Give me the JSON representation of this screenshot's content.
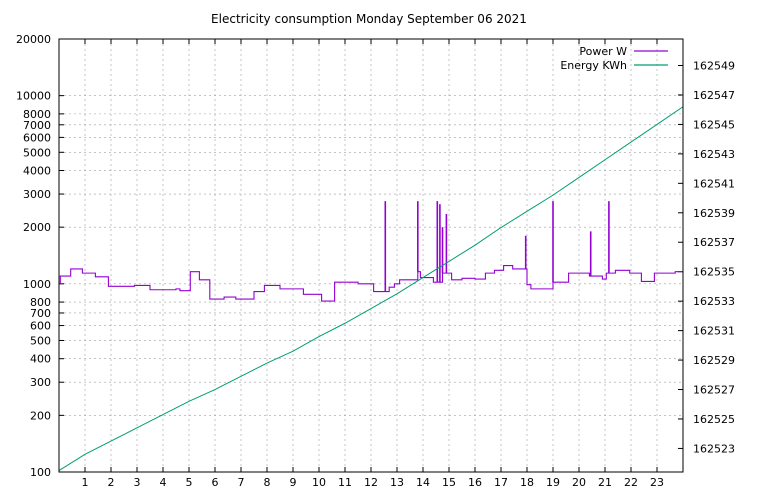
{
  "chart_data": {
    "type": "line",
    "title": "Electricity consumption Monday September 06 2021",
    "xlabel": "",
    "ylabel": "",
    "y2label": "",
    "grid": true,
    "legend_position": "top-right",
    "x_range": [
      0,
      24
    ],
    "x_ticks": [
      "1",
      "2",
      "3",
      "4",
      "5",
      "6",
      "7",
      "8",
      "9",
      "10",
      "11",
      "12",
      "13",
      "14",
      "15",
      "16",
      "17",
      "18",
      "19",
      "20",
      "21",
      "22",
      "23"
    ],
    "y_scale": "log",
    "y_range": [
      100,
      20000
    ],
    "y_ticks": [
      "100",
      "200",
      "300",
      "400",
      "500",
      "600",
      "700",
      "800",
      "1000",
      "2000",
      "3000",
      "4000",
      "5000",
      "6000",
      "7000",
      "8000",
      "10000",
      "20000"
    ],
    "y2_range": [
      162521.4,
      162550.8
    ],
    "y2_ticks": [
      "162523",
      "162525",
      "162527",
      "162529",
      "162531",
      "162533",
      "162535",
      "162537",
      "162539",
      "162541",
      "162543",
      "162545",
      "162547",
      "162549"
    ],
    "series": [
      {
        "name": "Power W",
        "axis": "y",
        "color": "#9400d3",
        "step": true,
        "x": [
          0,
          0.05,
          0.45,
          0.9,
          1.4,
          1.9,
          2.9,
          3.5,
          4.5,
          4.65,
          5.05,
          5.4,
          5.8,
          6.35,
          6.8,
          7.5,
          7.9,
          8.5,
          9.4,
          10.1,
          10.6,
          11.5,
          12.1,
          12.7,
          12.9,
          13.1,
          13.8,
          13.9,
          14.4,
          14.75,
          15.1,
          15.5,
          16.0,
          16.4,
          16.75,
          17.1,
          17.45,
          18.0,
          18.15,
          19.0,
          19.6,
          20.4,
          20.9,
          21.05,
          21.4,
          21.95,
          22.4,
          22.9,
          23.7
        ],
        "y": [
          1000,
          1100,
          1200,
          1140,
          1090,
          970,
          980,
          930,
          940,
          920,
          1160,
          1050,
          830,
          850,
          830,
          910,
          980,
          940,
          880,
          810,
          1020,
          1000,
          910,
          960,
          1000,
          1050,
          1160,
          1080,
          1020,
          1140,
          1050,
          1070,
          1060,
          1140,
          1180,
          1250,
          1200,
          990,
          940,
          1020,
          1140,
          1100,
          1060,
          1140,
          1180,
          1140,
          1030,
          1140,
          1160
        ],
        "spikes": [
          {
            "x": 12.55,
            "y": 2750
          },
          {
            "x": 13.8,
            "y": 2750
          },
          {
            "x": 14.55,
            "y": 2750
          },
          {
            "x": 14.65,
            "y": 2650
          },
          {
            "x": 14.75,
            "y": 2000
          },
          {
            "x": 14.9,
            "y": 2350
          },
          {
            "x": 17.95,
            "y": 1800
          },
          {
            "x": 19.0,
            "y": 2750
          },
          {
            "x": 20.45,
            "y": 1900
          },
          {
            "x": 21.15,
            "y": 2750
          }
        ],
        "end_x": 24
      },
      {
        "name": "Energy KWh",
        "axis": "y2",
        "color": "#009e73",
        "x": [
          0,
          1,
          2,
          3,
          4,
          5,
          6,
          7,
          8,
          9,
          10,
          11,
          12,
          13,
          14,
          15,
          16,
          17,
          18,
          19,
          20,
          21,
          22,
          23,
          24
        ],
        "y": [
          162521.5,
          162522.6,
          162523.5,
          162524.4,
          162525.3,
          162526.2,
          162527.0,
          162527.9,
          162528.8,
          162529.6,
          162530.6,
          162531.5,
          162532.5,
          162533.5,
          162534.6,
          162535.7,
          162536.8,
          162538.0,
          162539.1,
          162540.2,
          162541.4,
          162542.6,
          162543.8,
          162545.0,
          162546.2
        ]
      }
    ]
  }
}
